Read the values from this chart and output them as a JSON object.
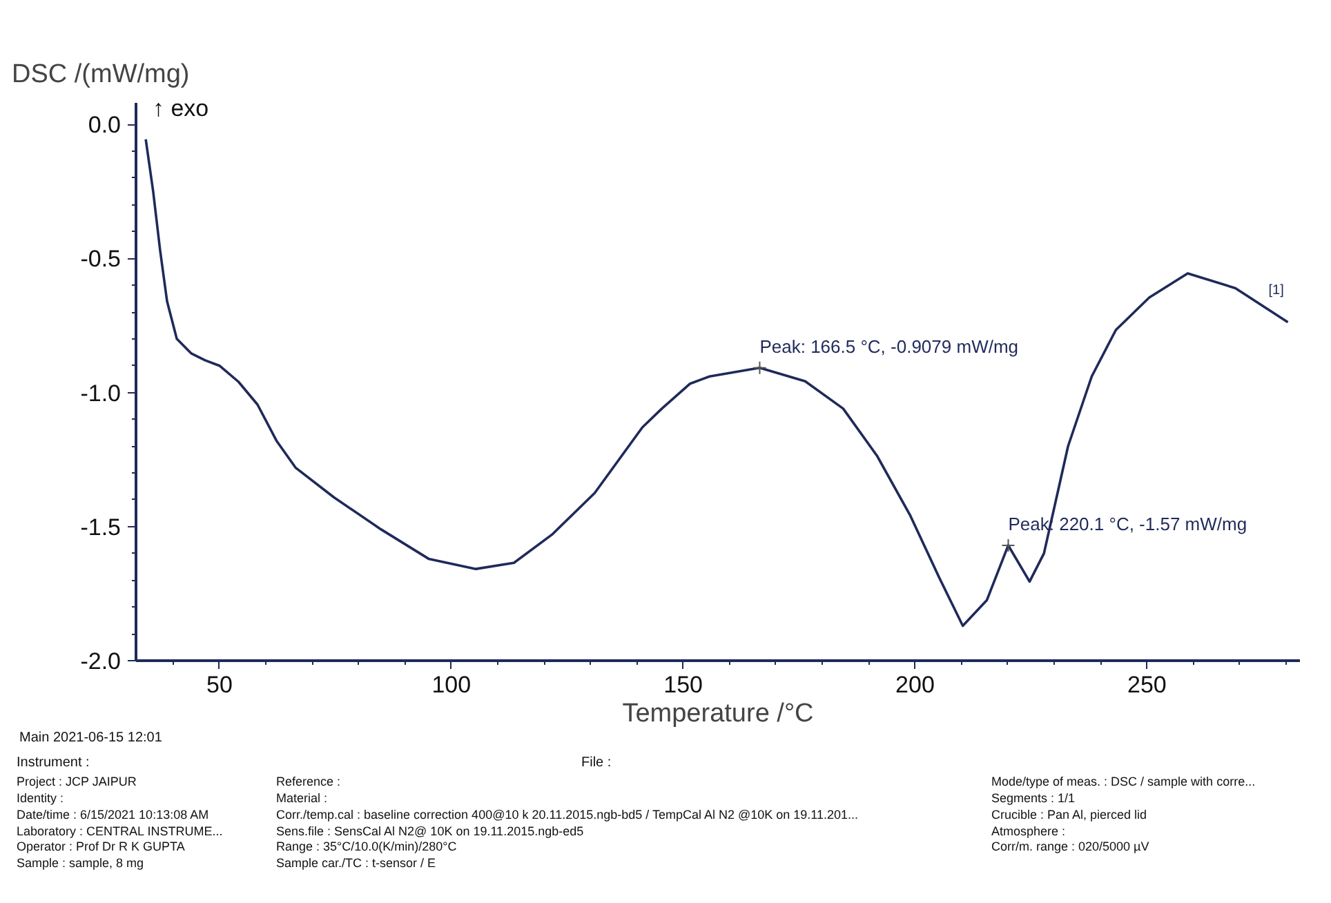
{
  "chart_data": {
    "type": "line",
    "xlabel": "Temperature /°C",
    "ylabel": "DSC /(mW/mg)",
    "xlim": [
      32,
      283
    ],
    "ylim": [
      -2.0,
      0.08
    ],
    "xticks": [
      {
        "value": 40,
        "label": null
      },
      50,
      {
        "value": 60,
        "label": null
      },
      {
        "value": 70,
        "label": null
      },
      {
        "value": 80,
        "label": null
      },
      {
        "value": 90,
        "label": null
      },
      100,
      {
        "value": 110,
        "label": null
      },
      {
        "value": 120,
        "label": null
      },
      {
        "value": 130,
        "label": null
      },
      {
        "value": 140,
        "label": null
      },
      150,
      {
        "value": 160,
        "label": null
      },
      {
        "value": 170,
        "label": null
      },
      {
        "value": 180,
        "label": null
      },
      {
        "value": 190,
        "label": null
      },
      200,
      {
        "value": 210,
        "label": null
      },
      {
        "value": 220,
        "label": null
      },
      {
        "value": 230,
        "label": null
      },
      {
        "value": 240,
        "label": null
      },
      250,
      {
        "value": 260,
        "label": null
      },
      {
        "value": 270,
        "label": null
      },
      {
        "value": 280,
        "label": null
      }
    ],
    "yticks": [
      {
        "value": -2.0,
        "label": "-2.0"
      },
      {
        "value": -1.9,
        "label": null
      },
      {
        "value": -1.8,
        "label": null
      },
      {
        "value": -1.7,
        "label": null
      },
      {
        "value": -1.6,
        "label": null
      },
      {
        "value": -1.5,
        "label": "-1.5"
      },
      {
        "value": -1.4,
        "label": null
      },
      {
        "value": -1.3,
        "label": null
      },
      {
        "value": -1.2,
        "label": null
      },
      {
        "value": -1.1,
        "label": null
      },
      {
        "value": -1.0,
        "label": "-1.0"
      },
      {
        "value": -0.9,
        "label": null
      },
      {
        "value": -0.8,
        "label": null
      },
      {
        "value": -0.7,
        "label": null
      },
      {
        "value": -0.6,
        "label": null
      },
      {
        "value": -0.5,
        "label": "-0.5"
      },
      {
        "value": -0.4,
        "label": null
      },
      {
        "value": -0.3,
        "label": null
      },
      {
        "value": -0.2,
        "label": null
      },
      {
        "value": -0.1,
        "label": null
      },
      {
        "value": 0.0,
        "label": "0.0"
      }
    ],
    "grid": false,
    "marker": "none",
    "line_style": "solid",
    "series": [
      {
        "color": "#1f2a5a",
        "x": [
          34.1,
          35.7,
          37.2,
          38.7,
          40.8,
          43.9,
          46.9,
          50,
          54.1,
          58.2,
          62.3,
          66.4,
          74.6,
          84.8,
          95.1,
          105.3,
          113.5,
          121.7,
          130.9,
          141.2,
          145.4,
          151.5,
          155.7,
          166.5,
          176.3,
          184.5,
          191.8,
          199,
          205.2,
          210.3,
          215.5,
          220.1,
          224.7,
          227.8,
          233,
          238.1,
          243.3,
          250.5,
          258.8,
          269.1,
          280.4
        ],
        "values": [
          -0.056,
          -0.25,
          -0.47,
          -0.66,
          -0.8,
          -0.854,
          -0.88,
          -0.9,
          -0.96,
          -1.045,
          -1.18,
          -1.28,
          -1.39,
          -1.51,
          -1.62,
          -1.658,
          -1.635,
          -1.53,
          -1.375,
          -1.13,
          -1.06,
          -0.967,
          -0.94,
          -0.9079,
          -0.958,
          -1.06,
          -1.236,
          -1.46,
          -1.69,
          -1.87,
          -1.774,
          -1.57,
          -1.705,
          -1.6,
          -1.2,
          -0.94,
          -0.767,
          -0.646,
          -0.556,
          -0.611,
          -0.738
        ]
      }
    ],
    "annotations": [
      "↑ exo",
      "[1]",
      {
        "text": "Peak: 166.5 °C, -0.9079 mW/mg",
        "x": 166.5,
        "y": -0.9079
      },
      {
        "text": "Peak: 220.1 °C, -1.57 mW/mg",
        "x": 220.1,
        "y": -1.57
      },
      "Main   2021-06-15 12:01",
      "Instrument :",
      "File :",
      "Project :  JCP JAIPUR",
      "Identity :",
      "Date/time :  6/15/2021 10:13:08 AM",
      "Laboratory :  CENTRAL INSTRUME...",
      "Operator :  Prof Dr R K GUPTA",
      "Sample :  sample, 8 mg",
      "Reference :",
      "Material :",
      "Corr./temp.cal :  baseline correction 400@10 k 20.11.2015.ngb-bd5 / TempCal Al N2 @10K on 19.11.201...",
      "Sens.file :  SensCal Al N2@ 10K on 19.11.2015.ngb-ed5",
      "Range :  35°C/10.0(K/min)/280°C",
      "Sample car./TC :  t-sensor / E",
      "Mode/type of meas. :  DSC / sample with corre...",
      "Segments :  1/1",
      "Crucible :  Pan Al, pierced lid",
      "Atmosphere :",
      "Corr/m. range :  020/5000 µV"
    ]
  }
}
